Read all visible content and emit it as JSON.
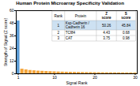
{
  "chart_data": {
    "type": "bar",
    "title": "Human Protein Microarray Specificity Validation",
    "xlabel": "Signal Rank",
    "ylabel": "Strength of Signal (Z score)",
    "x": [
      1,
      2,
      3,
      4,
      5,
      6,
      7,
      8,
      9,
      10,
      11,
      12,
      13,
      14,
      15,
      16,
      17,
      18,
      19,
      20,
      21,
      22,
      23,
      24,
      25,
      26,
      27,
      28,
      29,
      30
    ],
    "values": [
      50.26,
      4.43,
      3.75,
      3.2,
      2.9,
      2.6,
      2.4,
      2.2,
      2.05,
      1.9,
      1.75,
      1.65,
      1.55,
      1.45,
      1.38,
      1.31,
      1.25,
      1.19,
      1.14,
      1.09,
      1.04,
      1.0,
      0.96,
      0.93,
      0.9,
      0.87,
      0.84,
      0.82,
      0.8,
      0.78
    ],
    "colors": [
      "#5b9bd5",
      "#f4a43a",
      "#f4a43a",
      "#f4a43a",
      "#f4a43a",
      "#f4a43a",
      "#f4a43a",
      "#f4a43a",
      "#f4a43a",
      "#f4a43a",
      "#f4a43a",
      "#f4a43a",
      "#f4a43a",
      "#f4a43a",
      "#f4a43a",
      "#f4a43a",
      "#f4a43a",
      "#f4a43a",
      "#f4a43a",
      "#f4a43a",
      "#f4a43a",
      "#f4a43a",
      "#f4a43a",
      "#f4a43a",
      "#f4a43a",
      "#f4a43a",
      "#f4a43a",
      "#f4a43a",
      "#f4a43a",
      "#f4a43a"
    ],
    "xlim": [
      0.5,
      30.5
    ],
    "xticks": [
      1,
      10,
      20,
      30
    ],
    "ylim": [
      0,
      60
    ],
    "yticks": [
      0,
      12,
      24,
      36,
      48,
      60
    ],
    "table": {
      "columns": [
        "Rank",
        "Protein",
        "Z\nscore",
        "S\nscore"
      ],
      "rows": [
        [
          "1",
          "Ksp-Cadherin /\nCadherin 16",
          "50.26",
          "45.84"
        ],
        [
          "2",
          "TCf84",
          "4.43",
          "0.68"
        ],
        [
          "3",
          "CAT",
          "3.75",
          "0.98"
        ]
      ]
    }
  }
}
